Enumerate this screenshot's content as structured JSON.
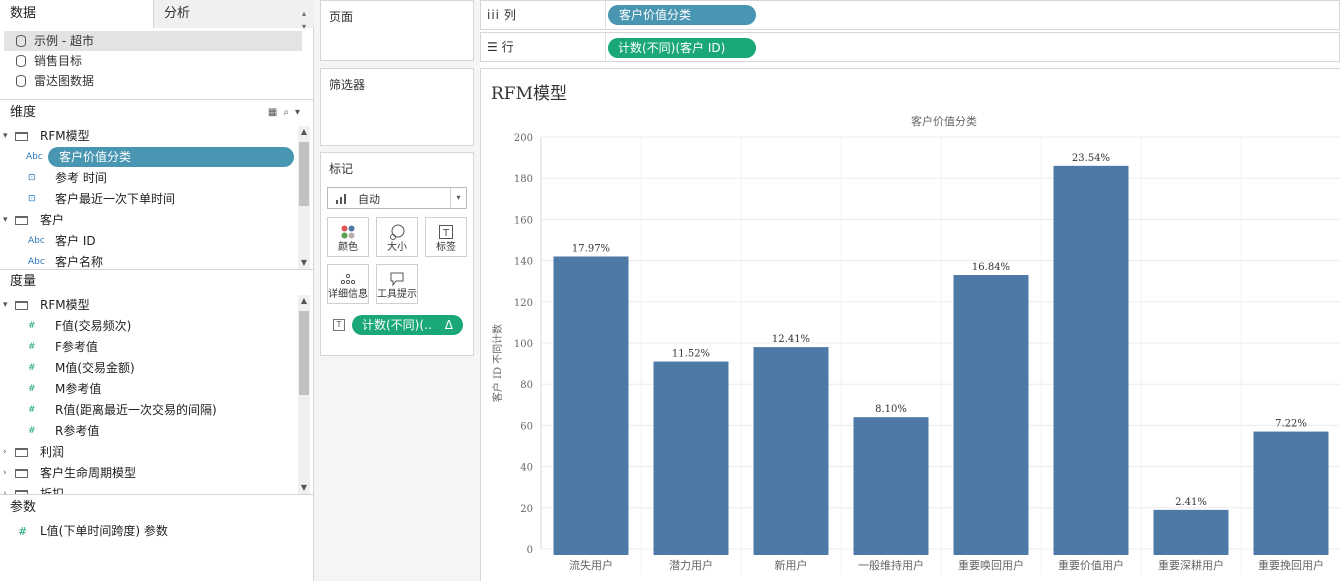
{
  "left_pane": {
    "tabs": {
      "data": "数据",
      "analysis": "分析"
    },
    "datasources": [
      "示例 - 超市",
      "销售目标",
      "雷达图数据"
    ],
    "dimensions_header": "维度",
    "dimensions": [
      {
        "type": "folder",
        "label": "RFM模型"
      },
      {
        "type": "abc",
        "label": "客户价值分类",
        "selected": true
      },
      {
        "type": "date",
        "label": "参考 时间"
      },
      {
        "type": "date",
        "label": "客户最近一次下单时间"
      },
      {
        "type": "folder",
        "label": "客户"
      },
      {
        "type": "abc",
        "label": "客户 ID"
      },
      {
        "type": "abc",
        "label": "客户名称"
      }
    ],
    "measures_header": "度量",
    "measures": [
      {
        "type": "folder",
        "label": "RFM模型"
      },
      {
        "type": "measure",
        "label": "F值(交易频次)"
      },
      {
        "type": "measure",
        "label": "F参考值"
      },
      {
        "type": "measure",
        "label": "M值(交易金额)"
      },
      {
        "type": "measure",
        "label": "M参考值"
      },
      {
        "type": "measure",
        "label": "R值(距离最近一次交易的间隔)"
      },
      {
        "type": "measure",
        "label": "R参考值"
      },
      {
        "type": "folder-closed",
        "label": "利润"
      },
      {
        "type": "folder-closed",
        "label": "客户生命周期模型"
      },
      {
        "type": "folder-closed",
        "label": "折扣"
      }
    ],
    "parameters_header": "参数",
    "parameters": [
      "L值(下单时间跨度) 参数"
    ],
    "icon_text": {
      "abc": "Abc",
      "date": "⊡",
      "measure": "#",
      "param": "#"
    }
  },
  "cards": {
    "pages": "页面",
    "filters": "筛选器",
    "marks": "标记",
    "mark_type": "自动",
    "mark_buttons": [
      "颜色",
      "大小",
      "标签",
      "详细信息",
      "工具提示"
    ],
    "mark_pill": "计数(不同)(..",
    "mark_pill_delta": "Δ"
  },
  "shelves": {
    "columns_label": "列",
    "columns_pill": "客户价值分类",
    "rows_label": "行",
    "rows_pill": "计数(不同)(客户 ID)"
  },
  "sheet_title": "RFM模型",
  "colors": {
    "bar": "#4e79a7",
    "pill_blue": "#4996b2",
    "pill_green": "#1aa77a"
  },
  "chart_data": {
    "type": "bar",
    "title": "客户价值分类",
    "ylabel": "客户 ID 不同计数",
    "ylim": [
      0,
      200
    ],
    "yticks": [
      0,
      20,
      40,
      60,
      80,
      100,
      120,
      140,
      160,
      180,
      200
    ],
    "categories": [
      "流失用户",
      "潜力用户",
      "新用户",
      "一般维持用户",
      "重要唤回用户",
      "重要价值用户",
      "重要深耕用户",
      "重要挽回用户"
    ],
    "values": [
      142,
      91,
      98,
      64,
      133,
      186,
      19,
      57
    ],
    "labels": [
      "17.97%",
      "11.52%",
      "12.41%",
      "8.10%",
      "16.84%",
      "23.54%",
      "2.41%",
      "7.22%"
    ],
    "grid": true
  }
}
